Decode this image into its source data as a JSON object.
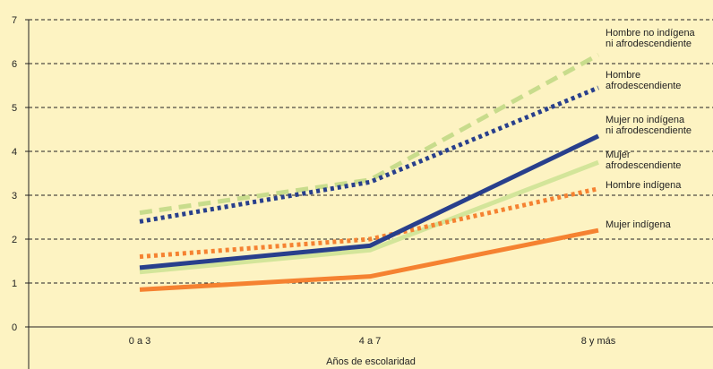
{
  "chart_data": {
    "type": "line",
    "title": "",
    "xlabel": "Años de escolaridad",
    "ylabel": "",
    "categories": [
      "0 a 3",
      "4 a 7",
      "8 y más"
    ],
    "ylim": [
      0,
      7
    ],
    "yticks": [
      0,
      1,
      2,
      3,
      4,
      5,
      6,
      7
    ],
    "grid": true,
    "legend": "labels at line ends (right)",
    "series": [
      {
        "name": "Hombre no indígena ni afrodescendiente",
        "label_lines": [
          "Hombre no indígena",
          "ni afrodescendiente"
        ],
        "values": [
          2.6,
          3.35,
          6.2
        ],
        "color": "#c8dc8c",
        "style": "dashed"
      },
      {
        "name": "Hombre afrodescendiente",
        "label_lines": [
          "Hombre",
          "afrodescendiente"
        ],
        "values": [
          2.4,
          3.3,
          5.45
        ],
        "color": "#283f8c",
        "style": "dotted"
      },
      {
        "name": "Mujer no indígena ni afrodescendiente",
        "label_lines": [
          "Mujer no indígena",
          "ni afrodescendiente"
        ],
        "values": [
          1.35,
          1.85,
          4.35
        ],
        "color": "#283f8c",
        "style": "solid"
      },
      {
        "name": "Mujer afrodescendiente",
        "label_lines": [
          "Mujer",
          "afrodescendiente"
        ],
        "values": [
          1.25,
          1.75,
          3.75
        ],
        "color": "#d3e59a",
        "style": "solid"
      },
      {
        "name": "Hombre indígena",
        "label_lines": [
          "Hombre indígena"
        ],
        "values": [
          1.6,
          2.0,
          3.15
        ],
        "color": "#f58231",
        "style": "dotted"
      },
      {
        "name": "Mujer indígena",
        "label_lines": [
          "Mujer indígena"
        ],
        "values": [
          0.85,
          1.15,
          2.2
        ],
        "color": "#f58231",
        "style": "solid"
      }
    ]
  }
}
